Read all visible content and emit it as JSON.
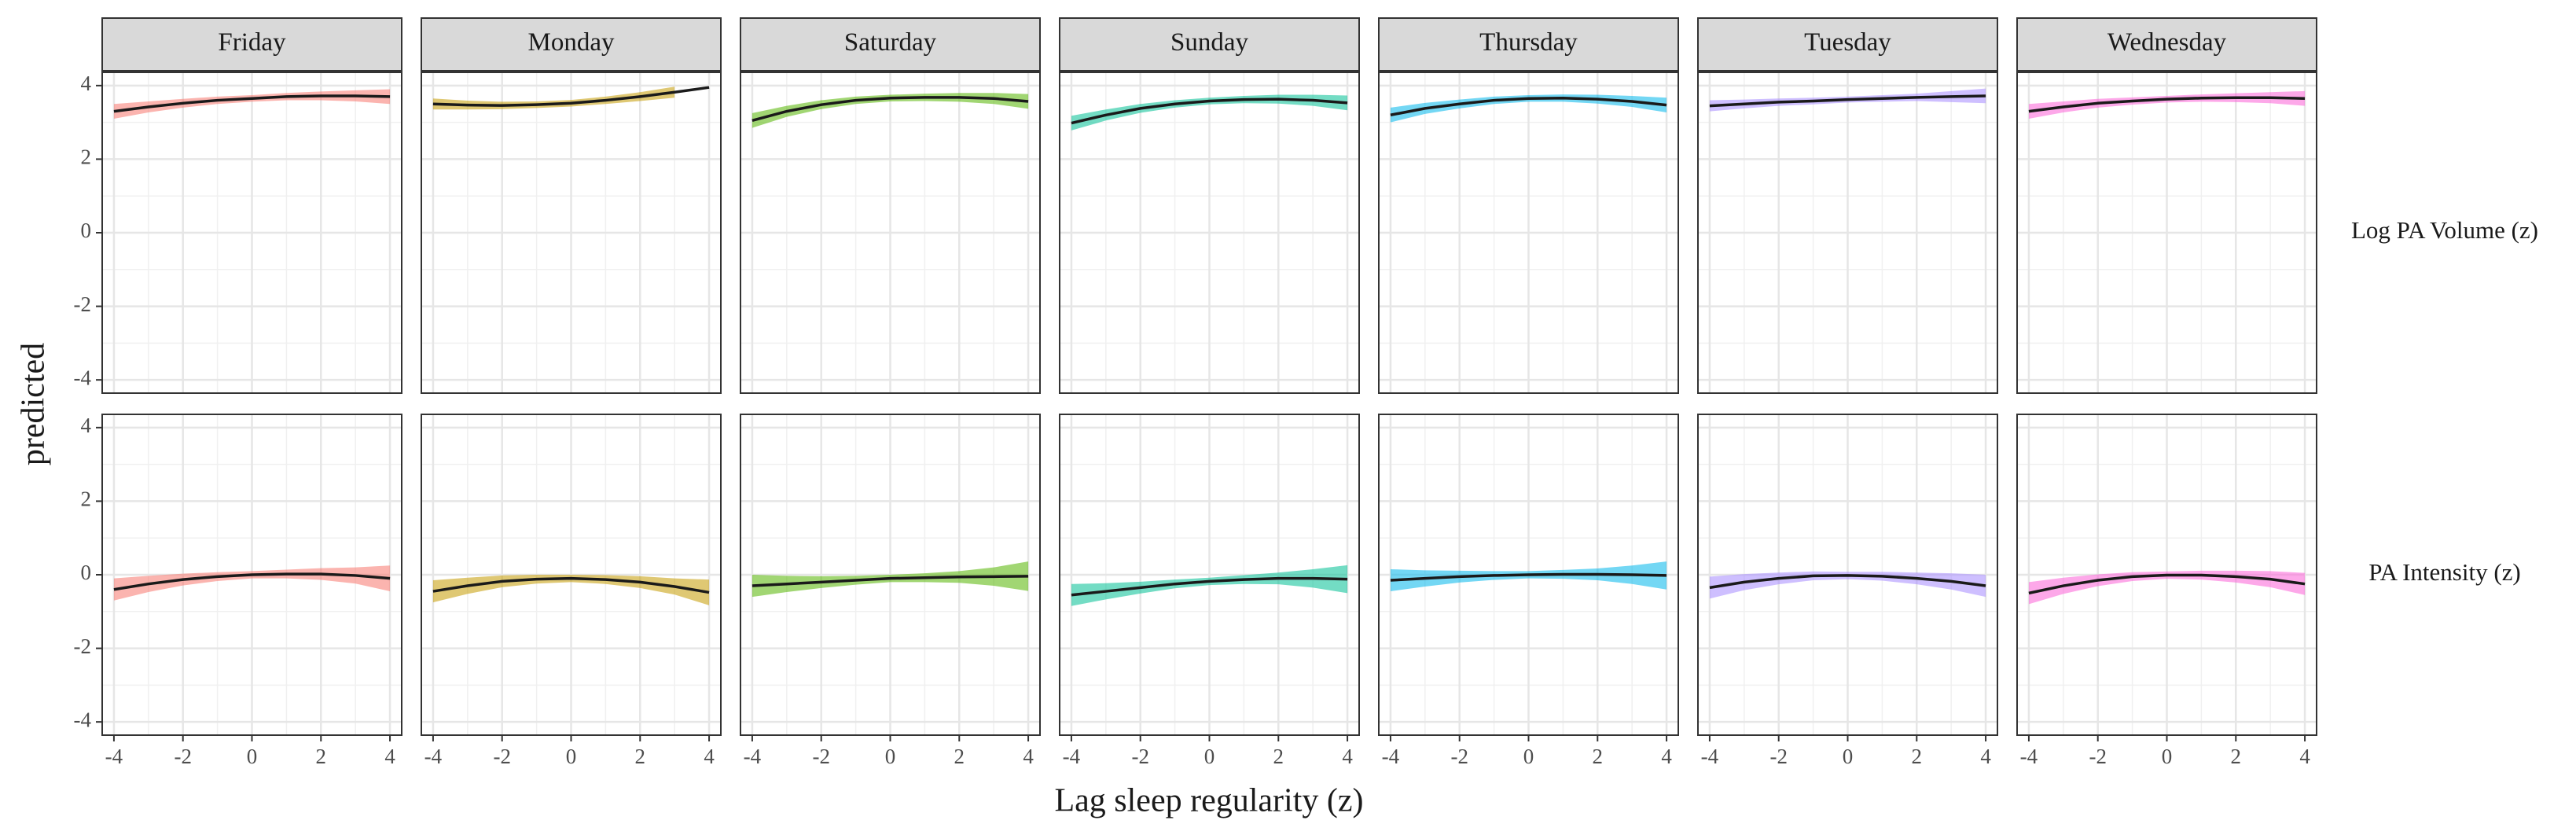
{
  "chart_data": {
    "type": "line",
    "xlabel": "Lag sleep regularity (z)",
    "ylabel": "predicted",
    "columns": [
      "Friday",
      "Monday",
      "Saturday",
      "Sunday",
      "Thursday",
      "Tuesday",
      "Wednesday"
    ],
    "x": [
      -4,
      -3,
      -2,
      -1,
      0,
      1,
      2,
      3,
      4
    ],
    "xlim": [
      -4.34,
      4.34
    ],
    "xticks": [
      -4,
      -2,
      0,
      2,
      4
    ],
    "ylim": [
      -4.36,
      4.36
    ],
    "yticks": [
      -4,
      -2,
      0,
      2,
      4
    ],
    "grid": true,
    "line_color": "#1a1a1a",
    "rows": [
      {
        "name": "Log PA Volume (z)",
        "series": [
          {
            "color": "#f8766d",
            "values": [
              3.3,
              3.42,
              3.52,
              3.6,
              3.65,
              3.7,
              3.72,
              3.72,
              3.7
            ],
            "errors": [
              0.2,
              0.15,
              0.12,
              0.1,
              0.09,
              0.1,
              0.12,
              0.15,
              0.2
            ]
          },
          {
            "color": "#c49a00",
            "values": [
              3.5,
              3.47,
              3.46,
              3.48,
              3.52,
              3.6,
              3.7,
              3.82,
              3.95
            ],
            "errors": [
              0.15,
              0.12,
              0.1,
              0.09,
              0.09,
              0.1,
              0.12,
              0.15,
              null
            ]
          },
          {
            "color": "#53b400",
            "values": [
              3.05,
              3.3,
              3.48,
              3.6,
              3.66,
              3.68,
              3.68,
              3.65,
              3.57
            ],
            "errors": [
              0.2,
              0.15,
              0.12,
              0.1,
              0.09,
              0.1,
              0.12,
              0.15,
              0.2
            ]
          },
          {
            "color": "#00c094",
            "values": [
              2.98,
              3.2,
              3.38,
              3.5,
              3.58,
              3.62,
              3.63,
              3.6,
              3.53
            ],
            "errors": [
              0.2,
              0.15,
              0.12,
              0.1,
              0.09,
              0.1,
              0.12,
              0.15,
              0.2
            ]
          },
          {
            "color": "#00b6eb",
            "values": [
              3.2,
              3.38,
              3.5,
              3.6,
              3.65,
              3.66,
              3.63,
              3.57,
              3.47
            ],
            "errors": [
              0.2,
              0.15,
              0.12,
              0.1,
              0.09,
              0.1,
              0.12,
              0.15,
              0.2
            ]
          },
          {
            "color": "#a58aff",
            "values": [
              3.45,
              3.5,
              3.55,
              3.58,
              3.62,
              3.65,
              3.68,
              3.7,
              3.72
            ],
            "errors": [
              0.15,
              0.12,
              0.1,
              0.09,
              0.08,
              0.09,
              0.1,
              0.15,
              0.2
            ]
          },
          {
            "color": "#fb61d7",
            "values": [
              3.3,
              3.42,
              3.52,
              3.58,
              3.63,
              3.66,
              3.67,
              3.67,
              3.65
            ],
            "errors": [
              0.2,
              0.15,
              0.12,
              0.1,
              0.09,
              0.1,
              0.12,
              0.15,
              0.2
            ]
          }
        ]
      },
      {
        "name": "PA Intensity (z)",
        "series": [
          {
            "color": "#f8766d",
            "values": [
              -0.4,
              -0.25,
              -0.13,
              -0.05,
              0,
              0.02,
              0.02,
              -0.02,
              -0.1
            ],
            "errors": [
              0.3,
              0.22,
              0.16,
              0.12,
              0.1,
              0.12,
              0.16,
              0.22,
              0.35
            ]
          },
          {
            "color": "#c49a00",
            "values": [
              -0.45,
              -0.3,
              -0.18,
              -0.12,
              -0.1,
              -0.13,
              -0.2,
              -0.32,
              -0.48
            ],
            "errors": [
              0.3,
              0.22,
              0.16,
              0.12,
              0.1,
              0.12,
              0.16,
              0.22,
              0.35
            ]
          },
          {
            "color": "#53b400",
            "values": [
              -0.3,
              -0.25,
              -0.2,
              -0.15,
              -0.1,
              -0.08,
              -0.06,
              -0.05,
              -0.04
            ],
            "errors": [
              0.3,
              0.22,
              0.16,
              0.12,
              0.1,
              0.12,
              0.16,
              0.25,
              0.4
            ]
          },
          {
            "color": "#00c094",
            "values": [
              -0.55,
              -0.45,
              -0.35,
              -0.25,
              -0.18,
              -0.13,
              -0.1,
              -0.1,
              -0.12
            ],
            "errors": [
              0.3,
              0.22,
              0.16,
              0.12,
              0.1,
              0.12,
              0.16,
              0.25,
              0.38
            ]
          },
          {
            "color": "#00b6eb",
            "values": [
              -0.15,
              -0.1,
              -0.05,
              -0.02,
              0,
              0.01,
              0.01,
              0,
              -0.02
            ],
            "errors": [
              0.3,
              0.22,
              0.16,
              0.12,
              0.1,
              0.12,
              0.16,
              0.25,
              0.38
            ]
          },
          {
            "color": "#a58aff",
            "values": [
              -0.35,
              -0.2,
              -0.1,
              -0.03,
              -0.02,
              -0.04,
              -0.1,
              -0.18,
              -0.3
            ],
            "errors": [
              0.3,
              0.22,
              0.16,
              0.12,
              0.1,
              0.12,
              0.16,
              0.22,
              0.3
            ]
          },
          {
            "color": "#fb61d7",
            "values": [
              -0.5,
              -0.3,
              -0.15,
              -0.05,
              -0.01,
              -0.01,
              -0.05,
              -0.12,
              -0.25
            ],
            "errors": [
              0.3,
              0.22,
              0.16,
              0.12,
              0.1,
              0.12,
              0.16,
              0.22,
              0.3
            ]
          }
        ]
      }
    ]
  }
}
